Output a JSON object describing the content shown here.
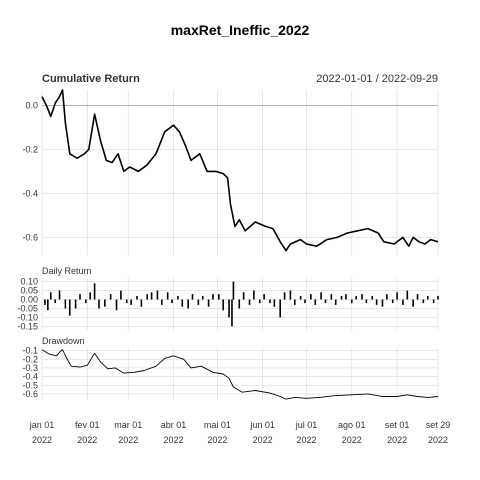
{
  "chart_data": {
    "type": "line",
    "title": "maxRet_Ineffic_2022",
    "date_range": "2022-01-01 / 2022-09-29",
    "x_ticks": [
      {
        "date": "2022-01-01",
        "label": "jan 01",
        "year": "2022"
      },
      {
        "date": "2022-02-01",
        "label": "fev 01",
        "year": "2022"
      },
      {
        "date": "2022-03-01",
        "label": "mar 01",
        "year": "2022"
      },
      {
        "date": "2022-04-01",
        "label": "abr 01",
        "year": "2022"
      },
      {
        "date": "2022-05-01",
        "label": "mai 01",
        "year": "2022"
      },
      {
        "date": "2022-06-01",
        "label": "jun 01",
        "year": "2022"
      },
      {
        "date": "2022-07-01",
        "label": "jul 01",
        "year": "2022"
      },
      {
        "date": "2022-08-01",
        "label": "ago 01",
        "year": "2022"
      },
      {
        "date": "2022-09-01",
        "label": "set 01",
        "year": "2022"
      },
      {
        "date": "2022-09-29",
        "label": "set 29",
        "year": "2022"
      }
    ],
    "panels": [
      {
        "name": "Cumulative Return",
        "type": "line",
        "ylim": [
          -0.68,
          0.07
        ],
        "y_ticks": [
          {
            "value": 0.0,
            "label": "0.0"
          },
          {
            "value": -0.2,
            "label": "-0.2"
          },
          {
            "value": -0.4,
            "label": "-0.4"
          },
          {
            "value": -0.6,
            "label": "-0.6"
          }
        ],
        "series": [
          {
            "values": [
              [
                "2022-01-01",
                0.04
              ],
              [
                "2022-01-04",
                0.0
              ],
              [
                "2022-01-07",
                -0.05
              ],
              [
                "2022-01-10",
                0.01
              ],
              [
                "2022-01-13",
                0.04
              ],
              [
                "2022-01-15",
                0.07
              ],
              [
                "2022-01-17",
                -0.08
              ],
              [
                "2022-01-20",
                -0.22
              ],
              [
                "2022-01-25",
                -0.24
              ],
              [
                "2022-01-30",
                -0.22
              ],
              [
                "2022-02-02",
                -0.2
              ],
              [
                "2022-02-06",
                -0.04
              ],
              [
                "2022-02-10",
                -0.16
              ],
              [
                "2022-02-14",
                -0.25
              ],
              [
                "2022-02-18",
                -0.26
              ],
              [
                "2022-02-22",
                -0.22
              ],
              [
                "2022-02-26",
                -0.3
              ],
              [
                "2022-03-02",
                -0.28
              ],
              [
                "2022-03-08",
                -0.3
              ],
              [
                "2022-03-14",
                -0.27
              ],
              [
                "2022-03-20",
                -0.22
              ],
              [
                "2022-03-26",
                -0.12
              ],
              [
                "2022-04-01",
                -0.09
              ],
              [
                "2022-04-05",
                -0.12
              ],
              [
                "2022-04-09",
                -0.18
              ],
              [
                "2022-04-13",
                -0.25
              ],
              [
                "2022-04-19",
                -0.22
              ],
              [
                "2022-04-24",
                -0.3
              ],
              [
                "2022-04-30",
                -0.3
              ],
              [
                "2022-05-05",
                -0.31
              ],
              [
                "2022-05-08",
                -0.33
              ],
              [
                "2022-05-10",
                -0.45
              ],
              [
                "2022-05-13",
                -0.55
              ],
              [
                "2022-05-16",
                -0.52
              ],
              [
                "2022-05-20",
                -0.57
              ],
              [
                "2022-05-27",
                -0.53
              ],
              [
                "2022-06-03",
                -0.55
              ],
              [
                "2022-06-08",
                -0.56
              ],
              [
                "2022-06-13",
                -0.62
              ],
              [
                "2022-06-17",
                -0.66
              ],
              [
                "2022-06-20",
                -0.63
              ],
              [
                "2022-06-27",
                -0.61
              ],
              [
                "2022-07-01",
                -0.63
              ],
              [
                "2022-07-08",
                -0.64
              ],
              [
                "2022-07-15",
                -0.61
              ],
              [
                "2022-07-22",
                -0.6
              ],
              [
                "2022-07-29",
                -0.58
              ],
              [
                "2022-08-05",
                -0.57
              ],
              [
                "2022-08-12",
                -0.56
              ],
              [
                "2022-08-19",
                -0.58
              ],
              [
                "2022-08-23",
                -0.62
              ],
              [
                "2022-08-30",
                -0.63
              ],
              [
                "2022-09-05",
                -0.6
              ],
              [
                "2022-09-09",
                -0.64
              ],
              [
                "2022-09-12",
                -0.6
              ],
              [
                "2022-09-16",
                -0.62
              ],
              [
                "2022-09-20",
                -0.63
              ],
              [
                "2022-09-24",
                -0.61
              ],
              [
                "2022-09-29",
                -0.62
              ]
            ]
          }
        ]
      },
      {
        "name": "Daily Return",
        "type": "bar",
        "ylim": [
          -0.17,
          0.12
        ],
        "y_ticks": [
          {
            "value": 0.1,
            "label": "0.10"
          },
          {
            "value": 0.05,
            "label": "0.05"
          },
          {
            "value": 0.0,
            "label": "0.00"
          },
          {
            "value": -0.05,
            "label": "-0.05"
          },
          {
            "value": -0.1,
            "label": "-0.10"
          },
          {
            "value": -0.15,
            "label": "-0.15"
          }
        ],
        "series": [
          {
            "values": [
              [
                "2022-01-03",
                -0.03
              ],
              [
                "2022-01-05",
                -0.06
              ],
              [
                "2022-01-07",
                0.04
              ],
              [
                "2022-01-10",
                -0.02
              ],
              [
                "2022-01-13",
                0.05
              ],
              [
                "2022-01-17",
                -0.05
              ],
              [
                "2022-01-20",
                -0.09
              ],
              [
                "2022-01-24",
                -0.05
              ],
              [
                "2022-01-27",
                0.03
              ],
              [
                "2022-01-31",
                -0.02
              ],
              [
                "2022-02-03",
                0.04
              ],
              [
                "2022-02-06",
                0.09
              ],
              [
                "2022-02-09",
                -0.05
              ],
              [
                "2022-02-13",
                -0.04
              ],
              [
                "2022-02-17",
                0.03
              ],
              [
                "2022-02-21",
                -0.06
              ],
              [
                "2022-02-24",
                0.05
              ],
              [
                "2022-02-28",
                -0.02
              ],
              [
                "2022-03-03",
                -0.03
              ],
              [
                "2022-03-07",
                0.02
              ],
              [
                "2022-03-10",
                -0.04
              ],
              [
                "2022-03-14",
                0.03
              ],
              [
                "2022-03-17",
                0.04
              ],
              [
                "2022-03-21",
                0.05
              ],
              [
                "2022-03-24",
                -0.03
              ],
              [
                "2022-03-28",
                0.04
              ],
              [
                "2022-03-31",
                -0.02
              ],
              [
                "2022-04-04",
                0.02
              ],
              [
                "2022-04-07",
                -0.04
              ],
              [
                "2022-04-11",
                -0.05
              ],
              [
                "2022-04-14",
                0.03
              ],
              [
                "2022-04-18",
                -0.03
              ],
              [
                "2022-04-21",
                0.02
              ],
              [
                "2022-04-25",
                -0.04
              ],
              [
                "2022-04-28",
                0.03
              ],
              [
                "2022-05-02",
                0.03
              ],
              [
                "2022-05-05",
                -0.06
              ],
              [
                "2022-05-09",
                -0.1
              ],
              [
                "2022-05-11",
                -0.15
              ],
              [
                "2022-05-12",
                0.1
              ],
              [
                "2022-05-16",
                -0.05
              ],
              [
                "2022-05-19",
                0.04
              ],
              [
                "2022-05-23",
                -0.03
              ],
              [
                "2022-05-26",
                0.05
              ],
              [
                "2022-05-30",
                -0.02
              ],
              [
                "2022-06-02",
                0.03
              ],
              [
                "2022-06-06",
                -0.02
              ],
              [
                "2022-06-09",
                -0.04
              ],
              [
                "2022-06-13",
                -0.1
              ],
              [
                "2022-06-16",
                0.04
              ],
              [
                "2022-06-20",
                0.05
              ],
              [
                "2022-06-23",
                -0.03
              ],
              [
                "2022-06-27",
                0.02
              ],
              [
                "2022-06-30",
                -0.02
              ],
              [
                "2022-07-04",
                0.03
              ],
              [
                "2022-07-07",
                -0.03
              ],
              [
                "2022-07-11",
                0.04
              ],
              [
                "2022-07-14",
                -0.02
              ],
              [
                "2022-07-18",
                0.03
              ],
              [
                "2022-07-21",
                -0.03
              ],
              [
                "2022-07-25",
                0.02
              ],
              [
                "2022-07-28",
                0.03
              ],
              [
                "2022-08-01",
                -0.02
              ],
              [
                "2022-08-04",
                0.02
              ],
              [
                "2022-08-08",
                0.03
              ],
              [
                "2022-08-11",
                -0.02
              ],
              [
                "2022-08-15",
                0.02
              ],
              [
                "2022-08-18",
                -0.03
              ],
              [
                "2022-08-22",
                -0.04
              ],
              [
                "2022-08-25",
                0.03
              ],
              [
                "2022-08-29",
                -0.02
              ],
              [
                "2022-09-01",
                0.04
              ],
              [
                "2022-09-05",
                -0.03
              ],
              [
                "2022-09-08",
                0.05
              ],
              [
                "2022-09-12",
                -0.04
              ],
              [
                "2022-09-15",
                0.03
              ],
              [
                "2022-09-19",
                -0.02
              ],
              [
                "2022-09-22",
                0.02
              ],
              [
                "2022-09-26",
                -0.02
              ],
              [
                "2022-09-29",
                0.02
              ]
            ]
          }
        ]
      },
      {
        "name": "Drawdown",
        "type": "line",
        "ylim": [
          -0.67,
          -0.07
        ],
        "y_ticks": [
          {
            "value": -0.1,
            "label": "-0.1"
          },
          {
            "value": -0.2,
            "label": "-0.2"
          },
          {
            "value": -0.3,
            "label": "-0.3"
          },
          {
            "value": -0.4,
            "label": "-0.4"
          },
          {
            "value": -0.5,
            "label": "-0.5"
          },
          {
            "value": -0.6,
            "label": "-0.6"
          }
        ],
        "series": [
          {
            "values": [
              [
                "2022-01-01",
                -0.09
              ],
              [
                "2022-01-06",
                -0.14
              ],
              [
                "2022-01-11",
                -0.16
              ],
              [
                "2022-01-13",
                -0.12
              ],
              [
                "2022-01-15",
                -0.09
              ],
              [
                "2022-01-18",
                -0.19
              ],
              [
                "2022-01-21",
                -0.28
              ],
              [
                "2022-01-27",
                -0.29
              ],
              [
                "2022-02-01",
                -0.27
              ],
              [
                "2022-02-06",
                -0.13
              ],
              [
                "2022-02-10",
                -0.23
              ],
              [
                "2022-02-15",
                -0.31
              ],
              [
                "2022-02-20",
                -0.3
              ],
              [
                "2022-02-26",
                -0.36
              ],
              [
                "2022-03-05",
                -0.35
              ],
              [
                "2022-03-12",
                -0.33
              ],
              [
                "2022-03-20",
                -0.28
              ],
              [
                "2022-03-26",
                -0.19
              ],
              [
                "2022-04-01",
                -0.16
              ],
              [
                "2022-04-08",
                -0.2
              ],
              [
                "2022-04-13",
                -0.3
              ],
              [
                "2022-04-20",
                -0.28
              ],
              [
                "2022-04-28",
                -0.35
              ],
              [
                "2022-05-05",
                -0.37
              ],
              [
                "2022-05-09",
                -0.42
              ],
              [
                "2022-05-12",
                -0.52
              ],
              [
                "2022-05-18",
                -0.58
              ],
              [
                "2022-05-27",
                -0.56
              ],
              [
                "2022-06-06",
                -0.59
              ],
              [
                "2022-06-13",
                -0.63
              ],
              [
                "2022-06-17",
                -0.66
              ],
              [
                "2022-06-23",
                -0.64
              ],
              [
                "2022-07-01",
                -0.65
              ],
              [
                "2022-07-10",
                -0.64
              ],
              [
                "2022-07-20",
                -0.62
              ],
              [
                "2022-08-01",
                -0.61
              ],
              [
                "2022-08-12",
                -0.6
              ],
              [
                "2022-08-22",
                -0.63
              ],
              [
                "2022-09-01",
                -0.63
              ],
              [
                "2022-09-08",
                -0.61
              ],
              [
                "2022-09-15",
                -0.63
              ],
              [
                "2022-09-22",
                -0.64
              ],
              [
                "2022-09-29",
                -0.63
              ]
            ]
          }
        ]
      }
    ]
  }
}
